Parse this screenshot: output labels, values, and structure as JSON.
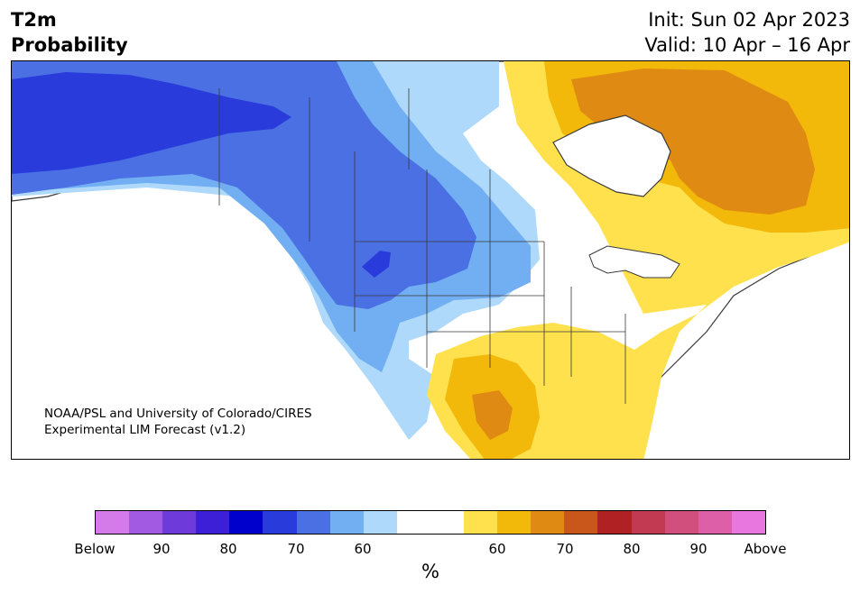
{
  "title": {
    "line1": "T2m",
    "line2": "Probability",
    "init": "Init: Sun 02 Apr 2023",
    "valid": "Valid: 10 Apr – 16 Apr"
  },
  "credit": {
    "line1": "NOAA/PSL and University of Colorado/CIRES",
    "line2": "Experimental LIM Forecast (v1.2)"
  },
  "colorbar": {
    "units": "%",
    "colors": [
      "#d57ae9",
      "#a35ae3",
      "#6e3ad9",
      "#3c1fd6",
      "#0000cc",
      "#2a3bdc",
      "#4a70e4",
      "#72aef2",
      "#aed9fa",
      "#ffffff",
      "#ffffff",
      "#ffe14d",
      "#f2b80a",
      "#df8a12",
      "#c9561a",
      "#b02124",
      "#c13a52",
      "#d14f7c",
      "#dc5fa8",
      "#e877e0"
    ],
    "ticks": [
      "Below",
      "90",
      "80",
      "70",
      "60",
      "60",
      "70",
      "80",
      "90",
      "Above"
    ]
  },
  "map": {
    "colors": {
      "ocean": "#ffffff",
      "below_80": "#2a3bdc",
      "below_70": "#4a70e4",
      "below_60": "#72aef2",
      "below_50": "#aed9fa",
      "above_50": "#ffe14d",
      "above_60": "#f2b80a",
      "above_70": "#df8a12",
      "border": "#3a3a3a"
    }
  }
}
